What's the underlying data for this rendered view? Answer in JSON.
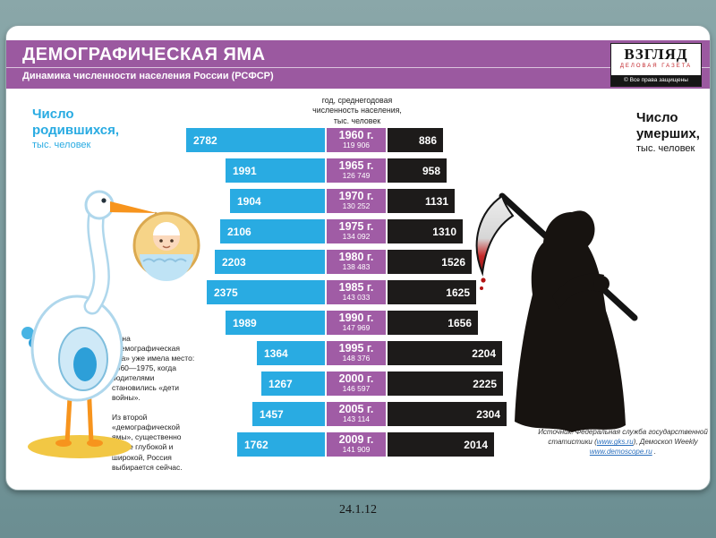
{
  "page": {
    "footer_date": "24.1.12"
  },
  "header": {
    "title": "ДЕМОГРАФИЧЕСКАЯ ЯМА",
    "subtitle": "Динамика численности населения России (РСФСР)",
    "logo_title": "ВЗГЛЯД",
    "logo_tagline": "ДЕЛОВАЯ ГАЗЕТА",
    "logo_copyright": "© Все права защищены"
  },
  "labels": {
    "births": "Число родившихся,",
    "births_units": "тыс. человек",
    "deaths": "Число умерших,",
    "deaths_units": "тыс. человек",
    "center_header_line1": "год, среднегодовая",
    "center_header_line2": "численность населения,",
    "center_header_line3": "тыс. человек"
  },
  "notes": {
    "note1": "Одна «демографическая яма» уже имела место: 1960—1975, когда родителями становились «дети войны».",
    "note2": "Из второй «демографической ямы», существенно более глубокой и широкой, Россия выбирается сейчас."
  },
  "source": {
    "prefix": "Источник: Федеральная служба государственной статистики (",
    "link1": "www.gks.ru",
    "mid": "), Демоскоп Weekly ",
    "link2": "www.demoscope.ru",
    "suffix": " ."
  },
  "colors": {
    "header": "#9B59A0",
    "year_box": "#A05CA5",
    "births_bar": "#29ABE2",
    "deaths_bar": "#1D1B1A"
  },
  "chart_data": {
    "type": "bar",
    "orientation": "horizontal-pyramid",
    "title": "ДЕМОГРАФИЧЕСКАЯ ЯМА — Динамика численности населения России (РСФСР)",
    "categories": [
      "1960 г.",
      "1965 г.",
      "1970 г.",
      "1975 г.",
      "1980 г.",
      "1985 г.",
      "1990 г.",
      "1995 г.",
      "2000 г.",
      "2005 г.",
      "2009 г."
    ],
    "population_thousands": [
      "119 906",
      "126 749",
      "130 252",
      "134 092",
      "138 483",
      "143 033",
      "147 969",
      "148 376",
      "146 597",
      "143 114",
      "141 909"
    ],
    "series": [
      {
        "name": "Число родившихся, тыс. человек",
        "values": [
          2782,
          1991,
          1904,
          2106,
          2203,
          2375,
          1989,
          1364,
          1267,
          1457,
          1762
        ]
      },
      {
        "name": "Число умерших, тыс. человек",
        "values": [
          886,
          958,
          1131,
          1310,
          1526,
          1625,
          1656,
          2204,
          2225,
          2304,
          2014
        ]
      }
    ],
    "value_range": [
      0,
      2800
    ],
    "legend_position": "none"
  }
}
